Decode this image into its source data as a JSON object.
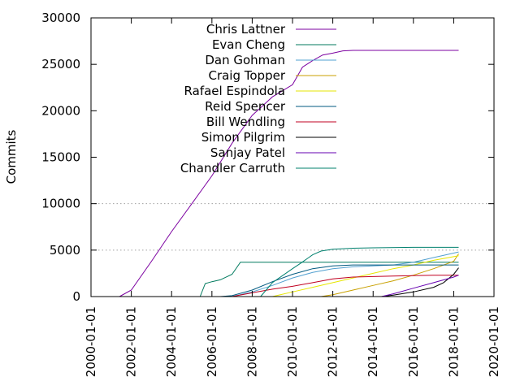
{
  "chart_data": {
    "type": "line",
    "ylabel": "Commits",
    "xlabel": "",
    "title": "",
    "grid": "horizontal dotted at 5000 and 10000",
    "legend_placement": "top-center",
    "xlim": [
      "2000-01-01",
      "2020-01-01"
    ],
    "ylim": [
      0,
      30000
    ],
    "x_ticks": [
      "2000-01-01",
      "2002-01-01",
      "2004-01-01",
      "2006-01-01",
      "2008-01-01",
      "2010-01-01",
      "2012-01-01",
      "2014-01-01",
      "2016-01-01",
      "2018-01-01",
      "2020-01-01"
    ],
    "y_ticks": [
      "0",
      "5000",
      "10000",
      "15000",
      "20000",
      "25000",
      "30000"
    ],
    "series": [
      {
        "name": "Chris Lattner",
        "color": "#7b00a0",
        "x": [
          "2001-06-01",
          "2002-01-01",
          "2003-01-01",
          "2004-01-01",
          "2005-01-01",
          "2006-01-01",
          "2007-01-01",
          "2008-01-01",
          "2009-01-01",
          "2010-01-01",
          "2010-07-01",
          "2011-01-01",
          "2011-07-01",
          "2012-01-01",
          "2012-07-01",
          "2013-01-01",
          "2015-01-01",
          "2017-01-01",
          "2018-04-01"
        ],
        "y": [
          0,
          700,
          3800,
          7000,
          10000,
          13000,
          16500,
          19500,
          21500,
          22800,
          24700,
          25400,
          26000,
          26200,
          26450,
          26500,
          26500,
          26500,
          26500
        ]
      },
      {
        "name": "Evan Cheng",
        "color": "#007a5e",
        "x": [
          "2005-01-01",
          "2005-06-01",
          "2005-09-01",
          "2006-01-01",
          "2006-06-01",
          "2007-01-01",
          "2007-06-01",
          "2008-01-01",
          "2008-06-01",
          "2009-01-01",
          "2010-01-01",
          "2010-06-01",
          "2011-01-01",
          "2011-06-01",
          "2012-01-01",
          "2012-06-01",
          "2013-01-01",
          "2014-01-01",
          "2016-01-01",
          "2018-04-01"
        ],
        "y": [
          0,
          0,
          1400,
          1600,
          1800,
          2400,
          3700,
          3700,
          3700,
          3700,
          3700,
          3700,
          3700,
          3700,
          3700,
          3700,
          3700,
          3700,
          3700,
          3700
        ]
      },
      {
        "name": "Dan Gohman",
        "color": "#52a0d0",
        "x": [
          "2007-01-01",
          "2008-01-01",
          "2009-01-01",
          "2010-01-01",
          "2011-01-01",
          "2012-01-01",
          "2013-01-01",
          "2014-01-01",
          "2015-01-01",
          "2016-01-01",
          "2017-01-01",
          "2018-04-01"
        ],
        "y": [
          0,
          500,
          1200,
          2000,
          2600,
          3000,
          3200,
          3300,
          3400,
          3700,
          4200,
          4800
        ]
      },
      {
        "name": "Craig Topper",
        "color": "#c8a000",
        "x": [
          "2011-06-01",
          "2012-01-01",
          "2013-01-01",
          "2014-01-01",
          "2015-01-01",
          "2016-01-01",
          "2017-01-01",
          "2018-01-01",
          "2018-04-01"
        ],
        "y": [
          0,
          200,
          700,
          1200,
          1700,
          2300,
          3000,
          3800,
          4600
        ]
      },
      {
        "name": "Rafael Espindola",
        "color": "#e6e600",
        "x": [
          "2009-01-01",
          "2010-01-01",
          "2011-01-01",
          "2012-01-01",
          "2013-01-01",
          "2014-01-01",
          "2015-01-01",
          "2016-01-01",
          "2017-01-01",
          "2018-04-01"
        ],
        "y": [
          0,
          500,
          1000,
          1500,
          2000,
          2500,
          3000,
          3400,
          3900,
          4400
        ]
      },
      {
        "name": "Reid Spencer",
        "color": "#005a80",
        "x": [
          "2006-06-01",
          "2007-01-01",
          "2008-01-01",
          "2009-01-01",
          "2010-01-01",
          "2011-01-01",
          "2012-01-01",
          "2013-01-01",
          "2014-01-01",
          "2016-01-01",
          "2018-04-01"
        ],
        "y": [
          0,
          100,
          700,
          1600,
          2400,
          3000,
          3300,
          3400,
          3400,
          3400,
          3400
        ]
      },
      {
        "name": "Bill Wendling",
        "color": "#c00020",
        "x": [
          "2007-01-01",
          "2008-01-01",
          "2009-01-01",
          "2010-01-01",
          "2011-01-01",
          "2012-01-01",
          "2013-01-01",
          "2015-01-01",
          "2017-01-01",
          "2018-04-01"
        ],
        "y": [
          0,
          400,
          800,
          1100,
          1500,
          1900,
          2100,
          2200,
          2300,
          2300
        ]
      },
      {
        "name": "Simon Pilgrim",
        "color": "#000000",
        "x": [
          "2014-06-01",
          "2015-01-01",
          "2016-01-01",
          "2017-01-01",
          "2017-07-01",
          "2018-01-01",
          "2018-04-01"
        ],
        "y": [
          0,
          150,
          500,
          1000,
          1500,
          2400,
          3100
        ]
      },
      {
        "name": "Sanjay Patel",
        "color": "#6600b0",
        "x": [
          "2014-06-01",
          "2015-01-01",
          "2016-01-01",
          "2017-01-01",
          "2018-01-01",
          "2018-04-01"
        ],
        "y": [
          0,
          300,
          900,
          1500,
          2100,
          2300
        ]
      },
      {
        "name": "Chandler Carruth",
        "color": "#00806e",
        "x": [
          "2008-06-01",
          "2009-01-01",
          "2010-01-01",
          "2010-06-01",
          "2011-01-01",
          "2011-06-01",
          "2012-01-01",
          "2013-01-01",
          "2014-01-01",
          "2016-01-01",
          "2018-04-01"
        ],
        "y": [
          0,
          1500,
          3000,
          3600,
          4500,
          4900,
          5100,
          5200,
          5250,
          5300,
          5300
        ]
      }
    ]
  }
}
